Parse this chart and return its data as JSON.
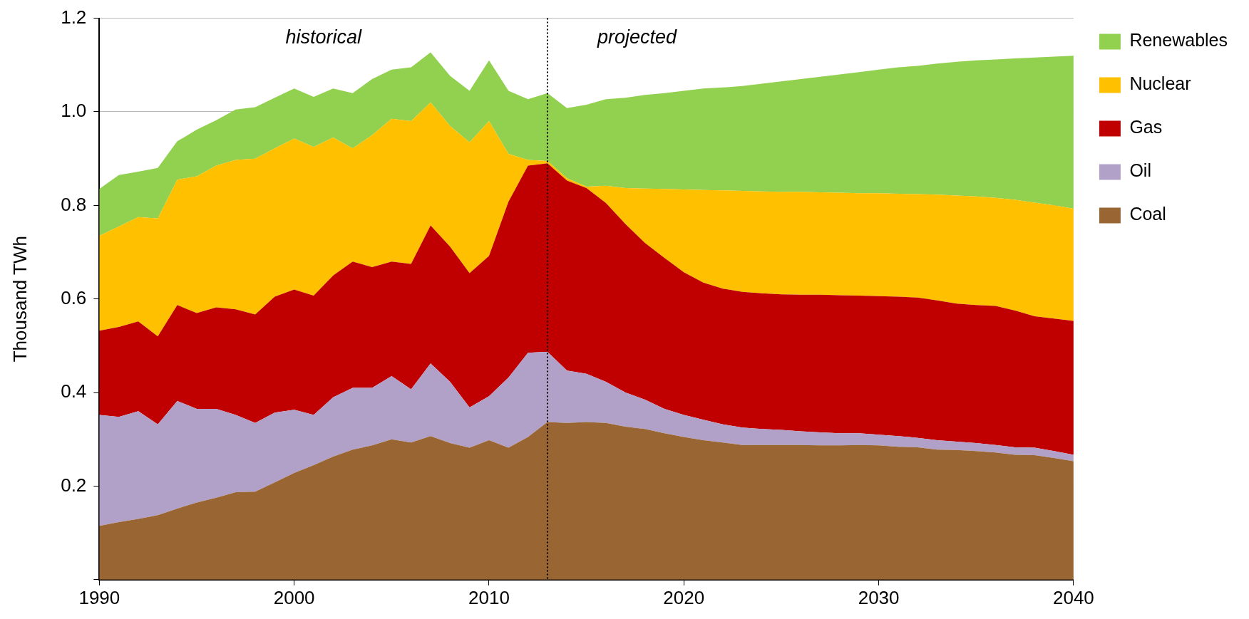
{
  "chart_data": {
    "type": "area",
    "stacked": true,
    "ylabel": "Thousand TWh",
    "x": [
      1990,
      1991,
      1992,
      1993,
      1994,
      1995,
      1996,
      1997,
      1998,
      1999,
      2000,
      2001,
      2002,
      2003,
      2004,
      2005,
      2006,
      2007,
      2008,
      2009,
      2010,
      2011,
      2012,
      2013,
      2014,
      2015,
      2016,
      2017,
      2018,
      2019,
      2020,
      2021,
      2022,
      2023,
      2024,
      2025,
      2026,
      2027,
      2028,
      2029,
      2030,
      2031,
      2032,
      2033,
      2034,
      2035,
      2036,
      2037,
      2038,
      2039,
      2040
    ],
    "series": [
      {
        "name": "Coal",
        "color": "#996633",
        "values": [
          0.115,
          0.123,
          0.13,
          0.138,
          0.152,
          0.165,
          0.175,
          0.187,
          0.188,
          0.208,
          0.228,
          0.245,
          0.263,
          0.278,
          0.287,
          0.3,
          0.293,
          0.307,
          0.292,
          0.282,
          0.298,
          0.282,
          0.305,
          0.337,
          0.335,
          0.337,
          0.335,
          0.327,
          0.322,
          0.313,
          0.305,
          0.298,
          0.293,
          0.288,
          0.288,
          0.288,
          0.288,
          0.287,
          0.287,
          0.288,
          0.287,
          0.284,
          0.283,
          0.278,
          0.277,
          0.275,
          0.272,
          0.267,
          0.266,
          0.26,
          0.253
        ]
      },
      {
        "name": "Oil",
        "color": "#b1a0c7",
        "values": [
          0.237,
          0.225,
          0.23,
          0.194,
          0.23,
          0.2,
          0.19,
          0.165,
          0.147,
          0.149,
          0.135,
          0.107,
          0.127,
          0.132,
          0.123,
          0.135,
          0.114,
          0.155,
          0.131,
          0.086,
          0.094,
          0.15,
          0.18,
          0.15,
          0.112,
          0.103,
          0.088,
          0.073,
          0.063,
          0.052,
          0.047,
          0.044,
          0.039,
          0.037,
          0.034,
          0.032,
          0.029,
          0.028,
          0.026,
          0.025,
          0.023,
          0.023,
          0.02,
          0.02,
          0.018,
          0.017,
          0.016,
          0.016,
          0.016,
          0.015,
          0.014
        ]
      },
      {
        "name": "Gas",
        "color": "#c00000",
        "values": [
          0.18,
          0.192,
          0.192,
          0.188,
          0.205,
          0.205,
          0.217,
          0.226,
          0.232,
          0.248,
          0.257,
          0.255,
          0.26,
          0.27,
          0.258,
          0.245,
          0.268,
          0.295,
          0.289,
          0.287,
          0.3,
          0.376,
          0.4,
          0.403,
          0.406,
          0.397,
          0.382,
          0.36,
          0.335,
          0.323,
          0.305,
          0.293,
          0.29,
          0.29,
          0.29,
          0.29,
          0.292,
          0.294,
          0.295,
          0.294,
          0.296,
          0.298,
          0.3,
          0.299,
          0.295,
          0.295,
          0.297,
          0.292,
          0.281,
          0.283,
          0.286
        ]
      },
      {
        "name": "Nuclear",
        "color": "#ffc000",
        "values": [
          0.203,
          0.215,
          0.223,
          0.252,
          0.268,
          0.292,
          0.303,
          0.319,
          0.333,
          0.317,
          0.323,
          0.318,
          0.295,
          0.242,
          0.282,
          0.305,
          0.305,
          0.263,
          0.258,
          0.28,
          0.288,
          0.102,
          0.012,
          0.005,
          0.005,
          0.003,
          0.037,
          0.077,
          0.116,
          0.147,
          0.177,
          0.198,
          0.21,
          0.216,
          0.218,
          0.219,
          0.22,
          0.219,
          0.219,
          0.219,
          0.22,
          0.22,
          0.221,
          0.226,
          0.231,
          0.232,
          0.231,
          0.237,
          0.243,
          0.242,
          0.24
        ]
      },
      {
        "name": "Renewables",
        "color": "#92d050",
        "values": [
          0.1,
          0.11,
          0.097,
          0.108,
          0.082,
          0.1,
          0.097,
          0.108,
          0.11,
          0.108,
          0.107,
          0.107,
          0.105,
          0.118,
          0.12,
          0.105,
          0.115,
          0.107,
          0.107,
          0.11,
          0.13,
          0.135,
          0.13,
          0.145,
          0.15,
          0.175,
          0.185,
          0.193,
          0.2,
          0.205,
          0.211,
          0.217,
          0.22,
          0.224,
          0.23,
          0.236,
          0.241,
          0.247,
          0.253,
          0.259,
          0.264,
          0.27,
          0.274,
          0.28,
          0.286,
          0.291,
          0.296,
          0.302,
          0.31,
          0.318,
          0.327
        ]
      }
    ],
    "xlim": [
      1990,
      2040
    ],
    "xticks": [
      1990,
      2000,
      2010,
      2020,
      2030,
      2040
    ],
    "ylim": [
      0,
      1.2
    ],
    "yticks": [
      {
        "value": 0,
        "label": null
      },
      0.2,
      0.4,
      0.6,
      0.8,
      {
        "value": 1,
        "label": "1.0"
      },
      1.2
    ],
    "grid": "y",
    "legend": "right",
    "ref_lines": [
      {
        "axis": "x",
        "value": 2013,
        "color": "#000000",
        "line_style": "dotted"
      }
    ],
    "annotations": [
      "historical",
      "projected"
    ]
  }
}
